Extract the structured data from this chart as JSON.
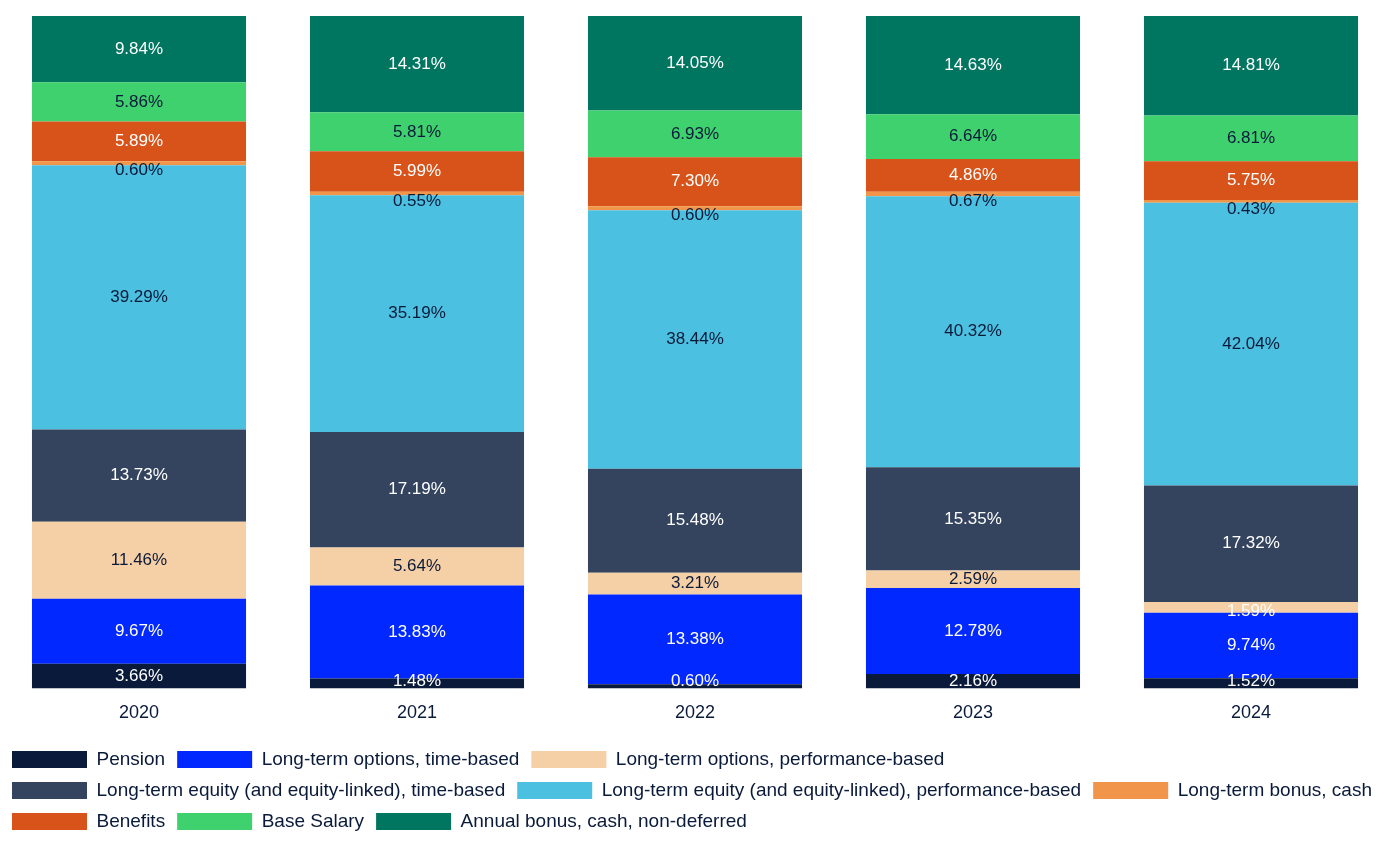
{
  "chart_data": {
    "type": "bar",
    "stacked": true,
    "categories": [
      "2020",
      "2021",
      "2022",
      "2023",
      "2024"
    ],
    "ylim": [
      0,
      100
    ],
    "tick_labels": "x",
    "grid": false,
    "legend": "bottom",
    "series": [
      {
        "name": "Pension",
        "color": "#0a1a3a",
        "values": [
          3.66,
          1.48,
          0.6,
          2.16,
          1.52
        ],
        "value_labels": [
          "3.66%",
          "1.48%",
          "0.60%",
          "2.16%",
          "1.52%"
        ]
      },
      {
        "name": "Long-term options, time-based",
        "color": "#0028ff",
        "values": [
          9.67,
          13.83,
          13.38,
          12.78,
          9.74
        ],
        "value_labels": [
          "9.67%",
          "13.83%",
          "13.38%",
          "12.78%",
          "9.74%"
        ]
      },
      {
        "name": "Long-term options, performance-based",
        "color": "#f5cfa5",
        "values": [
          11.46,
          5.64,
          3.21,
          2.59,
          1.59
        ],
        "value_labels": [
          "11.46%",
          "5.64%",
          "3.21%",
          "2.59%",
          "1.59%"
        ]
      },
      {
        "name": "Long-term equity (and equity-linked), time-based",
        "color": "#34445e",
        "values": [
          13.73,
          17.19,
          15.48,
          15.35,
          17.32
        ],
        "value_labels": [
          "13.73%",
          "17.19%",
          "15.48%",
          "15.35%",
          "17.32%"
        ]
      },
      {
        "name": "Long-term equity (and equity-linked), performance-based",
        "color": "#4cc0e0",
        "values": [
          39.29,
          35.19,
          38.44,
          40.32,
          42.04
        ],
        "value_labels": [
          "39.29%",
          "35.19%",
          "38.44%",
          "40.32%",
          "42.04%"
        ]
      },
      {
        "name": "Long-term bonus, cash",
        "color": "#f0954a",
        "values": [
          0.6,
          0.55,
          0.6,
          0.67,
          0.43
        ],
        "value_labels": [
          "0.60%",
          "0.55%",
          "0.60%",
          "0.67%",
          "0.43%"
        ]
      },
      {
        "name": "Benefits",
        "color": "#d8531a",
        "values": [
          5.89,
          5.99,
          7.3,
          4.86,
          5.75
        ],
        "value_labels": [
          "5.89%",
          "5.99%",
          "7.30%",
          "4.86%",
          "5.75%"
        ]
      },
      {
        "name": "Base Salary",
        "color": "#3fd16e",
        "values": [
          5.86,
          5.81,
          6.93,
          6.64,
          6.81
        ],
        "value_labels": [
          "5.86%",
          "5.81%",
          "6.93%",
          "6.64%",
          "6.81%"
        ]
      },
      {
        "name": "Annual bonus, cash, non-deferred",
        "color": "#007560",
        "values": [
          9.84,
          14.31,
          14.05,
          14.63,
          14.81
        ],
        "value_labels": [
          "9.84%",
          "14.31%",
          "14.05%",
          "14.63%",
          "14.81%"
        ]
      }
    ]
  }
}
